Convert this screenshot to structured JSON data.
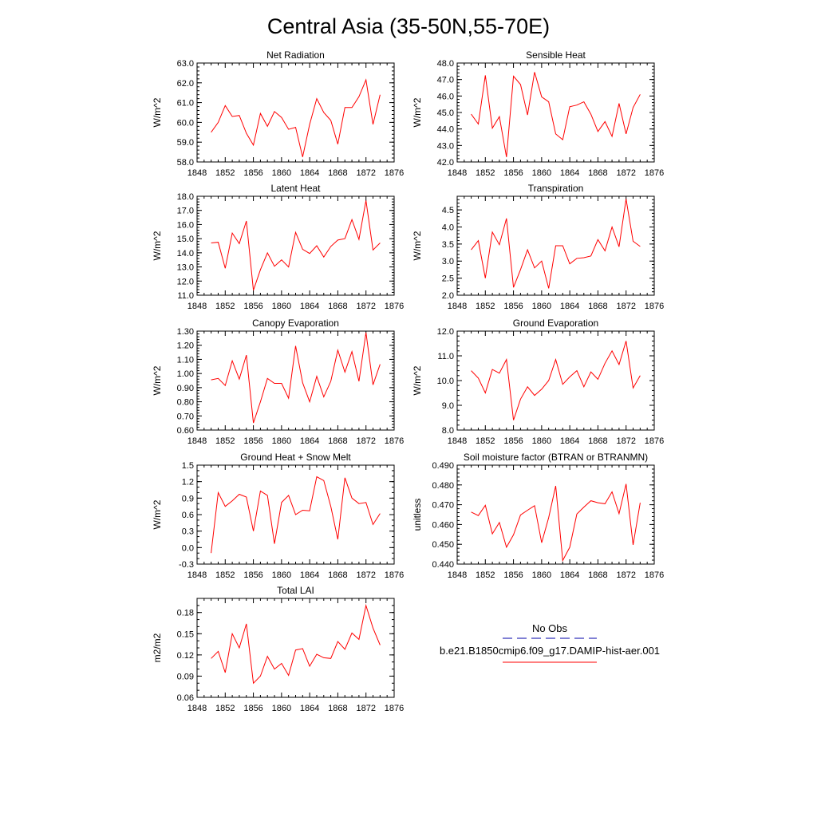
{
  "page": {
    "title": "Central Asia (35-50N,55-70E)"
  },
  "colors": {
    "model_line": "#ff0000",
    "obs_line": "#0000aa",
    "axis": "#000000"
  },
  "legend": {
    "obs_label": "No Obs",
    "model_label": "b.e21.B1850cmip6.f09_g17.DAMIP-hist-aer.001"
  },
  "chart_data": [
    {
      "id": "net-radiation",
      "type": "line",
      "title": "Net Radiation",
      "ylabel": "W/m^2",
      "xlim": [
        1848,
        1876
      ],
      "xticks": [
        1848,
        1852,
        1856,
        1860,
        1864,
        1868,
        1872,
        1876
      ],
      "ylim": [
        58.0,
        63.0
      ],
      "yticks": [
        "58.0",
        "59.0",
        "60.0",
        "61.0",
        "62.0",
        "63.0"
      ],
      "yminor": 0.2,
      "x": [
        1850,
        1851,
        1852,
        1853,
        1854,
        1855,
        1856,
        1857,
        1858,
        1859,
        1860,
        1861,
        1862,
        1863,
        1864,
        1865,
        1866,
        1867,
        1868,
        1869,
        1870,
        1871,
        1872,
        1873,
        1874
      ],
      "series": [
        {
          "values": [
            59.5,
            60.0,
            60.85,
            60.3,
            60.35,
            59.45,
            58.85,
            60.45,
            59.8,
            60.55,
            60.25,
            59.65,
            59.75,
            58.25,
            59.9,
            61.2,
            60.5,
            60.1,
            58.9,
            60.75,
            60.75,
            61.3,
            62.15,
            59.9,
            61.4
          ]
        }
      ]
    },
    {
      "id": "sensible-heat",
      "type": "line",
      "title": "Sensible Heat",
      "ylabel": "W/m^2",
      "xlim": [
        1848,
        1876
      ],
      "xticks": [
        1848,
        1852,
        1856,
        1860,
        1864,
        1868,
        1872,
        1876
      ],
      "ylim": [
        42.0,
        48.0
      ],
      "yticks": [
        "42.0",
        "43.0",
        "44.0",
        "45.0",
        "46.0",
        "47.0",
        "48.0"
      ],
      "yminor": 0.2,
      "x": [
        1850,
        1851,
        1852,
        1853,
        1854,
        1855,
        1856,
        1857,
        1858,
        1859,
        1860,
        1861,
        1862,
        1863,
        1864,
        1865,
        1866,
        1867,
        1868,
        1869,
        1870,
        1871,
        1872,
        1873,
        1874
      ],
      "series": [
        {
          "values": [
            44.9,
            44.3,
            47.25,
            44.05,
            44.75,
            42.3,
            47.2,
            46.7,
            44.85,
            47.45,
            45.95,
            45.65,
            43.7,
            43.35,
            45.35,
            45.45,
            45.65,
            44.9,
            43.85,
            44.45,
            43.55,
            45.55,
            43.7,
            45.3,
            46.1
          ]
        }
      ]
    },
    {
      "id": "latent-heat",
      "type": "line",
      "title": "Latent Heat",
      "ylabel": "W/m^2",
      "xlim": [
        1848,
        1876
      ],
      "xticks": [
        1848,
        1852,
        1856,
        1860,
        1864,
        1868,
        1872,
        1876
      ],
      "ylim": [
        11.0,
        18.0
      ],
      "yticks": [
        "11.0",
        "12.0",
        "13.0",
        "14.0",
        "15.0",
        "16.0",
        "17.0",
        "18.0"
      ],
      "yminor": 0.2,
      "x": [
        1850,
        1851,
        1852,
        1853,
        1854,
        1855,
        1856,
        1857,
        1858,
        1859,
        1860,
        1861,
        1862,
        1863,
        1864,
        1865,
        1866,
        1867,
        1868,
        1869,
        1870,
        1871,
        1872,
        1873,
        1874
      ],
      "series": [
        {
          "values": [
            14.7,
            14.75,
            12.9,
            15.4,
            14.65,
            16.25,
            11.35,
            12.8,
            14.0,
            13.05,
            13.5,
            13.0,
            15.45,
            14.25,
            13.95,
            14.5,
            13.7,
            14.45,
            14.9,
            15.0,
            16.35,
            14.95,
            17.7,
            14.2,
            14.7
          ]
        }
      ]
    },
    {
      "id": "transpiration",
      "type": "line",
      "title": "Transpiration",
      "ylabel": "W/m^2",
      "xlim": [
        1848,
        1876
      ],
      "xticks": [
        1848,
        1852,
        1856,
        1860,
        1864,
        1868,
        1872,
        1876
      ],
      "ylim": [
        2.0,
        4.9
      ],
      "yticks": [
        "2.0",
        "2.5",
        "3.0",
        "3.5",
        "4.0",
        "4.5"
      ],
      "yminor": 0.1,
      "x": [
        1850,
        1851,
        1852,
        1853,
        1854,
        1855,
        1856,
        1857,
        1858,
        1859,
        1860,
        1861,
        1862,
        1863,
        1864,
        1865,
        1866,
        1867,
        1868,
        1869,
        1870,
        1871,
        1872,
        1873,
        1874
      ],
      "series": [
        {
          "values": [
            3.33,
            3.6,
            2.5,
            3.85,
            3.48,
            4.25,
            2.23,
            2.75,
            3.33,
            2.8,
            3.0,
            2.2,
            3.45,
            3.45,
            2.92,
            3.08,
            3.1,
            3.15,
            3.63,
            3.3,
            4.0,
            3.42,
            4.82,
            3.58,
            3.43
          ]
        }
      ]
    },
    {
      "id": "canopy-evaporation",
      "type": "line",
      "title": "Canopy Evaporation",
      "ylabel": "W/m^2",
      "xlim": [
        1848,
        1876
      ],
      "xticks": [
        1848,
        1852,
        1856,
        1860,
        1864,
        1868,
        1872,
        1876
      ],
      "ylim": [
        0.6,
        1.3
      ],
      "yticks": [
        "0.60",
        "0.70",
        "0.80",
        "0.90",
        "1.00",
        "1.10",
        "1.20",
        "1.30"
      ],
      "yminor": 0.02,
      "x": [
        1850,
        1851,
        1852,
        1853,
        1854,
        1855,
        1856,
        1857,
        1858,
        1859,
        1860,
        1861,
        1862,
        1863,
        1864,
        1865,
        1866,
        1867,
        1868,
        1869,
        1870,
        1871,
        1872,
        1873,
        1874
      ],
      "series": [
        {
          "values": [
            0.955,
            0.965,
            0.915,
            1.09,
            0.96,
            1.13,
            0.65,
            0.8,
            0.965,
            0.93,
            0.93,
            0.825,
            1.195,
            0.935,
            0.8,
            0.98,
            0.835,
            0.945,
            1.165,
            1.01,
            1.155,
            0.945,
            1.29,
            0.92,
            1.065
          ]
        }
      ]
    },
    {
      "id": "ground-evaporation",
      "type": "line",
      "title": "Ground Evaporation",
      "ylabel": "W/m^2",
      "xlim": [
        1848,
        1876
      ],
      "xticks": [
        1848,
        1852,
        1856,
        1860,
        1864,
        1868,
        1872,
        1876
      ],
      "ylim": [
        8.0,
        12.0
      ],
      "yticks": [
        "8.0",
        "9.0",
        "10.0",
        "11.0",
        "12.0"
      ],
      "yminor": 0.2,
      "x": [
        1850,
        1851,
        1852,
        1853,
        1854,
        1855,
        1856,
        1857,
        1858,
        1859,
        1860,
        1861,
        1862,
        1863,
        1864,
        1865,
        1866,
        1867,
        1868,
        1869,
        1870,
        1871,
        1872,
        1873,
        1874
      ],
      "series": [
        {
          "values": [
            10.4,
            10.1,
            9.5,
            10.45,
            10.3,
            10.85,
            8.4,
            9.25,
            9.75,
            9.4,
            9.65,
            10.0,
            10.85,
            9.85,
            10.15,
            10.4,
            9.75,
            10.35,
            10.05,
            10.7,
            11.2,
            10.65,
            11.6,
            9.7,
            10.2
          ]
        }
      ]
    },
    {
      "id": "ground-heat-snow-melt",
      "type": "line",
      "title": "Ground Heat + Snow Melt",
      "ylabel": "W/m^2",
      "xlim": [
        1848,
        1876
      ],
      "xticks": [
        1848,
        1852,
        1856,
        1860,
        1864,
        1868,
        1872,
        1876
      ],
      "ylim": [
        -0.3,
        1.5
      ],
      "yticks": [
        "-0.3",
        "0.0",
        "0.3",
        "0.6",
        "0.9",
        "1.2",
        "1.5"
      ],
      "yminor": 0.1,
      "x": [
        1850,
        1851,
        1852,
        1853,
        1854,
        1855,
        1856,
        1857,
        1858,
        1859,
        1860,
        1861,
        1862,
        1863,
        1864,
        1865,
        1866,
        1867,
        1868,
        1869,
        1870,
        1871,
        1872,
        1873,
        1874
      ],
      "series": [
        {
          "values": [
            -0.1,
            1.0,
            0.75,
            0.85,
            0.97,
            0.92,
            0.3,
            1.03,
            0.95,
            0.07,
            0.82,
            0.95,
            0.6,
            0.68,
            0.67,
            1.29,
            1.22,
            0.75,
            0.15,
            1.27,
            0.9,
            0.8,
            0.82,
            0.42,
            0.62
          ]
        }
      ]
    },
    {
      "id": "soil-moisture-factor",
      "type": "line",
      "title": "Soil moisture factor (BTRAN or BTRANMN)",
      "ylabel": "unitless",
      "xlim": [
        1848,
        1876
      ],
      "xticks": [
        1848,
        1852,
        1856,
        1860,
        1864,
        1868,
        1872,
        1876
      ],
      "ylim": [
        0.44,
        0.49
      ],
      "yticks": [
        "0.440",
        "0.450",
        "0.460",
        "0.470",
        "0.480",
        "0.490"
      ],
      "yminor": 0.002,
      "x": [
        1850,
        1851,
        1852,
        1853,
        1854,
        1855,
        1856,
        1857,
        1858,
        1859,
        1860,
        1861,
        1862,
        1863,
        1864,
        1865,
        1866,
        1867,
        1868,
        1869,
        1870,
        1871,
        1872,
        1873,
        1874
      ],
      "series": [
        {
          "values": [
            0.4663,
            0.4645,
            0.4697,
            0.4553,
            0.461,
            0.4485,
            0.4548,
            0.4648,
            0.4672,
            0.4695,
            0.4508,
            0.4635,
            0.4795,
            0.4418,
            0.4485,
            0.4653,
            0.4688,
            0.472,
            0.471,
            0.4705,
            0.4765,
            0.4655,
            0.4805,
            0.4497,
            0.471
          ]
        }
      ]
    },
    {
      "id": "total-lai",
      "type": "line",
      "title": "Total LAI",
      "ylabel": "m2/m2",
      "xlim": [
        1848,
        1876
      ],
      "xticks": [
        1848,
        1852,
        1856,
        1860,
        1864,
        1868,
        1872,
        1876
      ],
      "ylim": [
        0.06,
        0.2
      ],
      "yticks": [
        "0.06",
        "0.09",
        "0.12",
        "0.15",
        "0.18"
      ],
      "yminor": 0.01,
      "x": [
        1850,
        1851,
        1852,
        1853,
        1854,
        1855,
        1856,
        1857,
        1858,
        1859,
        1860,
        1861,
        1862,
        1863,
        1864,
        1865,
        1866,
        1867,
        1868,
        1869,
        1870,
        1871,
        1872,
        1873,
        1874
      ],
      "series": [
        {
          "values": [
            0.115,
            0.125,
            0.095,
            0.15,
            0.13,
            0.164,
            0.08,
            0.09,
            0.118,
            0.1,
            0.108,
            0.091,
            0.127,
            0.129,
            0.104,
            0.121,
            0.116,
            0.115,
            0.139,
            0.128,
            0.151,
            0.142,
            0.19,
            0.158,
            0.134
          ]
        }
      ]
    }
  ]
}
